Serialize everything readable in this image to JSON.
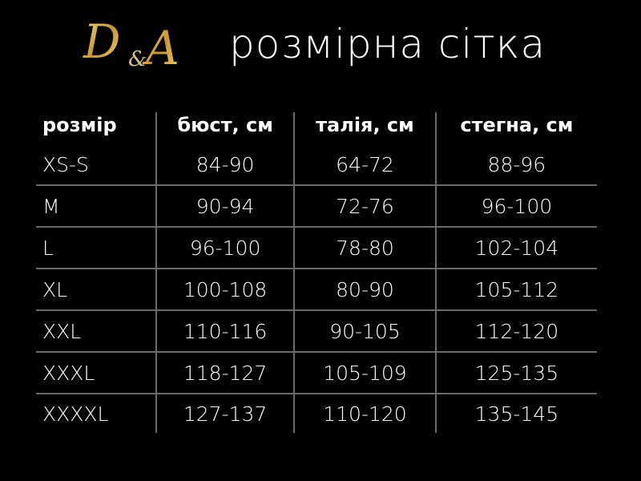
{
  "logo": {
    "text": "D&A",
    "color": "#d4a93a"
  },
  "title": "розмірна сітка",
  "table": {
    "headers": [
      "розмір",
      "бюст, см",
      "талія, см",
      "стегна, см"
    ],
    "rows": [
      [
        "XS-S",
        "84-90",
        "64-72",
        "88-96"
      ],
      [
        "M",
        "90-94",
        "72-76",
        "96-100"
      ],
      [
        "L",
        "96-100",
        "78-80",
        "102-104"
      ],
      [
        "XL",
        "100-108",
        "80-90",
        "105-112"
      ],
      [
        "XXL",
        "110-116",
        "90-105",
        "112-120"
      ],
      [
        "XXXL",
        "118-127",
        "105-109",
        "125-135"
      ],
      [
        "XXXXL",
        "127-137",
        "110-120",
        "135-145"
      ]
    ]
  },
  "colors": {
    "background": "#000000",
    "text": "#ffffff",
    "grid": "#6a6a6a",
    "logo_gold": "#d4a93a"
  }
}
